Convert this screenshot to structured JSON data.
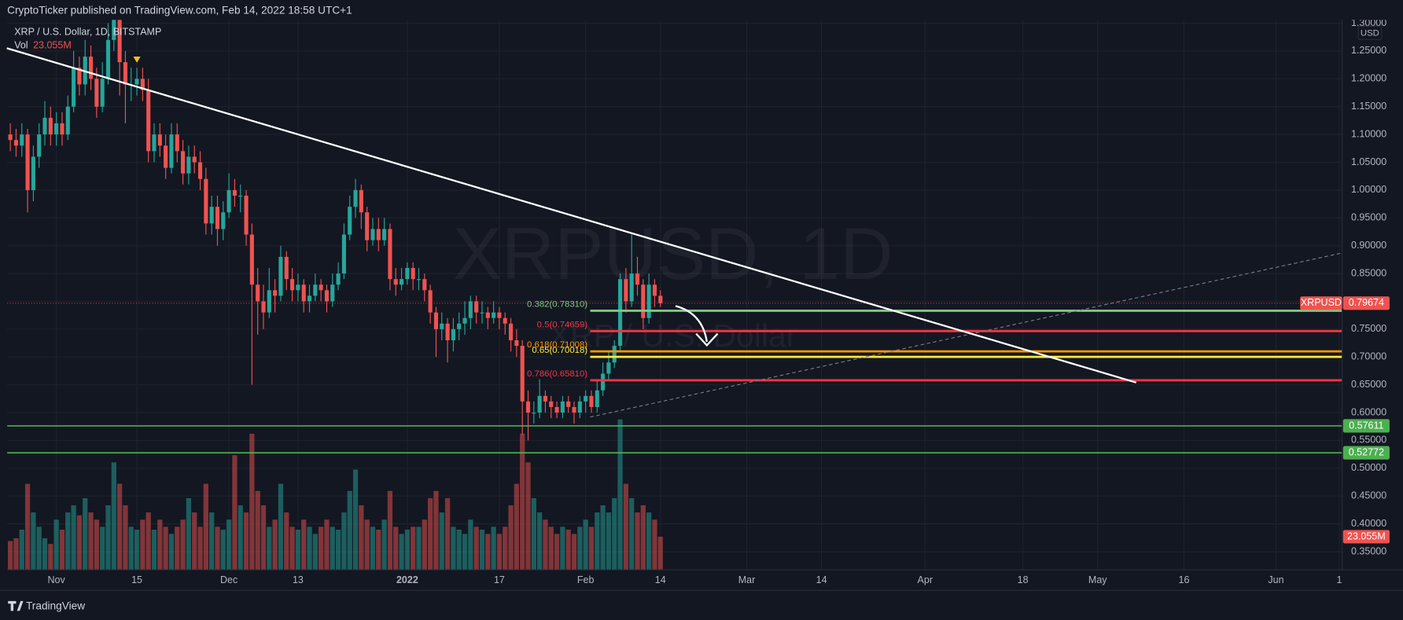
{
  "header": {
    "publisher": "CryptoTicker published on TradingView.com, Feb 14, 2022 18:58 UTC+1",
    "footer": "TradingView"
  },
  "chart_data": {
    "type": "candlestick",
    "title": "XRP / U.S. Dollar, 1D, BITSTAMP",
    "watermark": "XRPUSD, 1D",
    "watermark_subtitle": "XRP / U.S. Dollar",
    "currency": "USD",
    "symbol": "XRPUSD",
    "volume_name": "Vol",
    "last_volume_label": "23.055M",
    "x": [
      -8,
      -7,
      -6,
      -5,
      -4,
      -3,
      -2,
      -1,
      0,
      1,
      2,
      3,
      4,
      5,
      6,
      7,
      8,
      9,
      10,
      11,
      12,
      13,
      14,
      15,
      16,
      17,
      18,
      19,
      20,
      21,
      22,
      23,
      24,
      25,
      26,
      27,
      28,
      29,
      30,
      31,
      32,
      33,
      34,
      35,
      36,
      37,
      38,
      39,
      40,
      41,
      42,
      43,
      44,
      45,
      46,
      47,
      48,
      49,
      50,
      51,
      52,
      53,
      54,
      55,
      56,
      57,
      58,
      59,
      60,
      61,
      62,
      63,
      64,
      65,
      66,
      67,
      68,
      69,
      70,
      71,
      72,
      73,
      74,
      75,
      76,
      77,
      78,
      79,
      80,
      81,
      82,
      83,
      84,
      85,
      86,
      87,
      88,
      89,
      90,
      91,
      92,
      93,
      94,
      95,
      96,
      97,
      98,
      99,
      100,
      101,
      102,
      103,
      104,
      105
    ],
    "open": [
      1.1,
      1.09,
      1.08,
      1.1,
      1.0,
      1.06,
      1.1,
      1.13,
      1.1,
      1.12,
      1.1,
      1.15,
      1.22,
      1.19,
      1.24,
      1.2,
      1.15,
      1.2,
      1.27,
      1.31,
      1.23,
      1.19,
      1.19,
      1.2,
      1.18,
      1.07,
      1.1,
      1.08,
      1.04,
      1.1,
      1.07,
      1.03,
      1.06,
      1.05,
      1.02,
      0.94,
      0.97,
      0.93,
      0.96,
      1.0,
      0.99,
      0.99,
      0.92,
      0.83,
      0.8,
      0.78,
      0.82,
      0.81,
      0.88,
      0.84,
      0.82,
      0.83,
      0.8,
      0.81,
      0.83,
      0.82,
      0.8,
      0.83,
      0.85,
      0.92,
      0.97,
      1.0,
      0.96,
      0.91,
      0.93,
      0.91,
      0.93,
      0.84,
      0.83,
      0.84,
      0.86,
      0.84,
      0.84,
      0.82,
      0.78,
      0.75,
      0.76,
      0.73,
      0.75,
      0.76,
      0.77,
      0.8,
      0.78,
      0.78,
      0.77,
      0.78,
      0.77,
      0.76,
      0.73,
      0.72,
      0.62,
      0.6,
      0.6,
      0.63,
      0.62,
      0.61,
      0.6,
      0.62,
      0.61,
      0.6,
      0.62,
      0.63,
      0.61,
      0.64,
      0.67,
      0.69,
      0.72,
      0.84,
      0.8,
      0.85,
      0.83,
      0.77,
      0.83,
      0.81
    ],
    "high": [
      1.12,
      1.11,
      1.12,
      1.11,
      1.08,
      1.12,
      1.16,
      1.15,
      1.14,
      1.14,
      1.17,
      1.25,
      1.24,
      1.27,
      1.26,
      1.22,
      1.23,
      1.3,
      1.35,
      1.33,
      1.25,
      1.22,
      1.22,
      1.22,
      1.2,
      1.12,
      1.12,
      1.1,
      1.12,
      1.12,
      1.09,
      1.08,
      1.08,
      1.07,
      1.04,
      0.99,
      0.99,
      0.98,
      1.03,
      1.02,
      1.01,
      1.0,
      0.94,
      0.86,
      0.83,
      0.86,
      0.84,
      0.9,
      0.89,
      0.86,
      0.85,
      0.84,
      0.83,
      0.85,
      0.84,
      0.83,
      0.85,
      0.87,
      0.94,
      0.99,
      1.02,
      1.01,
      0.97,
      0.95,
      0.95,
      0.95,
      0.94,
      0.86,
      0.86,
      0.87,
      0.87,
      0.86,
      0.85,
      0.83,
      0.79,
      0.78,
      0.77,
      0.77,
      0.78,
      0.8,
      0.81,
      0.81,
      0.8,
      0.79,
      0.8,
      0.79,
      0.78,
      0.77,
      0.75,
      0.73,
      0.64,
      0.62,
      0.66,
      0.64,
      0.63,
      0.62,
      0.63,
      0.63,
      0.62,
      0.63,
      0.64,
      0.64,
      0.66,
      0.69,
      0.71,
      0.73,
      0.85,
      0.86,
      0.92,
      0.88,
      0.84,
      0.85,
      0.84,
      0.82
    ],
    "low": [
      1.07,
      1.06,
      1.06,
      0.96,
      0.98,
      1.04,
      1.08,
      1.08,
      1.08,
      1.08,
      1.09,
      1.14,
      1.17,
      1.17,
      1.18,
      1.13,
      1.14,
      1.19,
      1.25,
      1.17,
      1.12,
      1.16,
      1.17,
      1.16,
      1.05,
      1.05,
      1.06,
      1.02,
      1.03,
      1.05,
      1.01,
      1.01,
      1.03,
      1.0,
      0.92,
      0.92,
      0.9,
      0.91,
      0.95,
      0.97,
      0.96,
      0.9,
      0.65,
      0.74,
      0.75,
      0.77,
      0.78,
      0.8,
      0.82,
      0.8,
      0.8,
      0.78,
      0.78,
      0.8,
      0.8,
      0.78,
      0.79,
      0.82,
      0.84,
      0.91,
      0.95,
      0.93,
      0.89,
      0.9,
      0.89,
      0.9,
      0.82,
      0.81,
      0.82,
      0.83,
      0.82,
      0.82,
      0.8,
      0.76,
      0.7,
      0.73,
      0.69,
      0.71,
      0.73,
      0.74,
      0.75,
      0.76,
      0.76,
      0.75,
      0.76,
      0.75,
      0.74,
      0.71,
      0.7,
      0.56,
      0.55,
      0.58,
      0.59,
      0.6,
      0.59,
      0.59,
      0.59,
      0.6,
      0.58,
      0.59,
      0.6,
      0.6,
      0.6,
      0.63,
      0.66,
      0.68,
      0.71,
      0.78,
      0.79,
      0.81,
      0.75,
      0.76,
      0.79,
      0.79
    ],
    "close": [
      1.09,
      1.08,
      1.1,
      1.0,
      1.06,
      1.1,
      1.13,
      1.1,
      1.12,
      1.1,
      1.15,
      1.22,
      1.19,
      1.24,
      1.2,
      1.15,
      1.2,
      1.27,
      1.31,
      1.23,
      1.19,
      1.19,
      1.2,
      1.18,
      1.07,
      1.1,
      1.08,
      1.04,
      1.1,
      1.07,
      1.03,
      1.06,
      1.05,
      1.02,
      0.94,
      0.97,
      0.93,
      0.96,
      1.0,
      0.99,
      0.99,
      0.92,
      0.83,
      0.8,
      0.78,
      0.82,
      0.81,
      0.88,
      0.84,
      0.82,
      0.83,
      0.8,
      0.81,
      0.83,
      0.82,
      0.8,
      0.83,
      0.85,
      0.92,
      0.97,
      1.0,
      0.96,
      0.91,
      0.93,
      0.91,
      0.93,
      0.84,
      0.83,
      0.84,
      0.86,
      0.84,
      0.84,
      0.82,
      0.78,
      0.75,
      0.76,
      0.73,
      0.75,
      0.76,
      0.77,
      0.8,
      0.78,
      0.78,
      0.77,
      0.78,
      0.77,
      0.76,
      0.73,
      0.72,
      0.62,
      0.6,
      0.6,
      0.63,
      0.62,
      0.61,
      0.6,
      0.62,
      0.61,
      0.6,
      0.62,
      0.63,
      0.61,
      0.64,
      0.67,
      0.69,
      0.72,
      0.84,
      0.8,
      0.85,
      0.83,
      0.77,
      0.83,
      0.81,
      0.79674
    ],
    "volume": [
      20,
      22,
      28,
      60,
      40,
      30,
      22,
      18,
      35,
      28,
      40,
      45,
      38,
      50,
      40,
      35,
      30,
      45,
      75,
      60,
      45,
      30,
      28,
      35,
      40,
      28,
      35,
      30,
      25,
      30,
      35,
      50,
      40,
      30,
      60,
      40,
      30,
      28,
      35,
      80,
      45,
      40,
      95,
      55,
      45,
      30,
      35,
      60,
      40,
      30,
      28,
      35,
      30,
      25,
      30,
      35,
      30,
      28,
      40,
      55,
      70,
      45,
      35,
      30,
      28,
      35,
      55,
      30,
      25,
      28,
      30,
      30,
      35,
      50,
      55,
      40,
      50,
      30,
      28,
      25,
      35,
      30,
      28,
      25,
      30,
      25,
      30,
      45,
      60,
      95,
      75,
      50,
      40,
      35,
      30,
      25,
      30,
      28,
      25,
      30,
      35,
      30,
      40,
      45,
      40,
      50,
      105,
      60,
      50,
      40,
      45,
      40,
      35,
      23.055
    ],
    "up_color": "#26a69a",
    "down_color": "#ef5350",
    "xlim": [
      -8.55,
      223.5
    ],
    "xticks": [
      {
        "value": 0,
        "label": "Nov"
      },
      {
        "value": 14,
        "label": "15"
      },
      {
        "value": 30,
        "label": "Dec"
      },
      {
        "value": 42,
        "label": "13"
      },
      {
        "value": 61,
        "label": "2022"
      },
      {
        "value": 77,
        "label": "17"
      },
      {
        "value": 92,
        "label": "Feb"
      },
      {
        "value": 105,
        "label": "14"
      },
      {
        "value": 120,
        "label": "Mar"
      },
      {
        "value": 133,
        "label": "14"
      },
      {
        "value": 151,
        "label": "Apr"
      },
      {
        "value": 168,
        "label": "18"
      },
      {
        "value": 181,
        "label": "May"
      },
      {
        "value": 196,
        "label": "16"
      },
      {
        "value": 212,
        "label": "Jun"
      },
      {
        "value": 223,
        "label": "1"
      }
    ],
    "ylim": [
      0.3175,
      1.306
    ],
    "yticks": [
      {
        "value": 0.35,
        "label": "0.35000"
      },
      {
        "value": 0.4,
        "label": "0.40000"
      },
      {
        "value": 0.45,
        "label": "0.45000"
      },
      {
        "value": 0.5,
        "label": "0.50000"
      },
      {
        "value": 0.55,
        "label": "0.55000"
      },
      {
        "value": 0.6,
        "label": "0.60000"
      },
      {
        "value": 0.65,
        "label": "0.65000"
      },
      {
        "value": 0.7,
        "label": "0.70000"
      },
      {
        "value": 0.75,
        "label": "0.75000"
      },
      {
        "value": 0.8,
        "label": "0.80000"
      },
      {
        "value": 0.85,
        "label": "0.85000"
      },
      {
        "value": 0.9,
        "label": "0.90000"
      },
      {
        "value": 0.95,
        "label": "0.95000"
      },
      {
        "value": 1.0,
        "label": "1.00000"
      },
      {
        "value": 1.05,
        "label": "1.05000"
      },
      {
        "value": 1.1,
        "label": "1.10000"
      },
      {
        "value": 1.15,
        "label": "1.15000"
      },
      {
        "value": 1.2,
        "label": "1.20000"
      },
      {
        "value": 1.25,
        "label": "1.25000"
      },
      {
        "value": 1.3,
        "label": "1.30000"
      }
    ],
    "volume_lim": [
      0,
      384
    ],
    "grid": true,
    "trendline": {
      "x": [
        -8.6,
        187.7
      ],
      "y": [
        1.255,
        0.654
      ],
      "color": "#ffffff"
    },
    "channel_line": {
      "x": [
        92.8,
        223.5
      ],
      "y": [
        0.592,
        0.887
      ],
      "color": "#787b86"
    },
    "fib_x_start": 92.8,
    "fib_levels": [
      {
        "label": "0.382(0.78310)",
        "value": 0.7831,
        "color": "#81c784"
      },
      {
        "label": "0.5(0.74659)",
        "value": 0.74659,
        "color": "#f23645"
      },
      {
        "label": "0.618(0.71008)",
        "value": 0.71008,
        "color": "#ff9800"
      },
      {
        "label": "0.65(0.70018)",
        "value": 0.70018,
        "color": "#ffeb3b"
      },
      {
        "label": "0.786(0.65810)",
        "value": 0.6581,
        "color": "#f23645"
      }
    ],
    "support_lines": [
      {
        "value": 0.57611,
        "color": "#4caf50"
      },
      {
        "value": 0.52772,
        "color": "#4caf50"
      }
    ]
  }
}
